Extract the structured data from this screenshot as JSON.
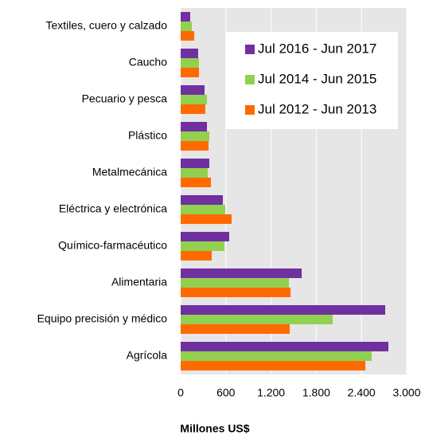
{
  "chart_data": {
    "type": "hbar",
    "categories": [
      "Textiles, cuero y calzado",
      "Caucho",
      "Pecuario y pesca",
      "Plástico",
      "Metalmecánica",
      "Eléctrica y electrónica",
      "Químico-farmacéutico",
      "Alimentaria",
      "Equipo precisión y médico",
      "Agrícola"
    ],
    "series": [
      {
        "name": "Jul 2016 - Jun 2017",
        "color": "#7030a0",
        "values": [
          127,
          232,
          317,
          349,
          380,
          560,
          644,
          1606,
          2715,
          2757
        ]
      },
      {
        "name": "Jul 2014 - Jun 2015",
        "color": "#92d050",
        "values": [
          148,
          243,
          349,
          380,
          359,
          591,
          581,
          1437,
          2017,
          2535
        ]
      },
      {
        "name": "Jul 2012 - Jun 2013",
        "color": "#ff6a00",
        "values": [
          180,
          243,
          327,
          370,
          401,
          676,
          412,
          1458,
          1447,
          2451
        ]
      }
    ],
    "xlim": [
      0,
      3000
    ],
    "xticks": [
      0,
      600,
      {
        "value": 1200,
        "label": "1.200"
      },
      {
        "value": 1800,
        "label": "1.800"
      },
      {
        "value": 2400,
        "label": "2.400"
      },
      {
        "value": 3000,
        "label": "3.000"
      }
    ],
    "xlabel": "Millones US$",
    "grid": true,
    "legend": "top-right"
  }
}
